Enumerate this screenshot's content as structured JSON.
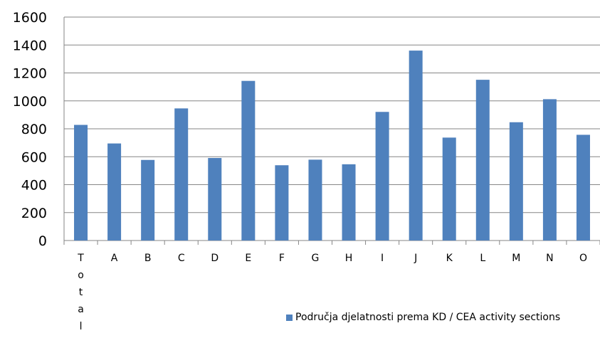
{
  "chart_data": {
    "type": "bar",
    "categories": [
      "Total",
      "A",
      "B",
      "C",
      "D",
      "E",
      "F",
      "G",
      "H",
      "I",
      "J",
      "K",
      "L",
      "M",
      "N",
      "O"
    ],
    "series": [
      {
        "name": "Područja djelatnosti prema KD / CEA activity sections",
        "values": [
          828,
          695,
          577,
          946,
          591,
          1143,
          539,
          579,
          546,
          921,
          1360,
          737,
          1151,
          847,
          1012,
          757
        ],
        "color": "#4f81bd"
      }
    ],
    "ylim": [
      0,
      1600
    ],
    "yticks": [
      0,
      200,
      400,
      600,
      800,
      1000,
      1200,
      1400,
      1600
    ],
    "grid": true,
    "legend_position": "bottom-right"
  }
}
